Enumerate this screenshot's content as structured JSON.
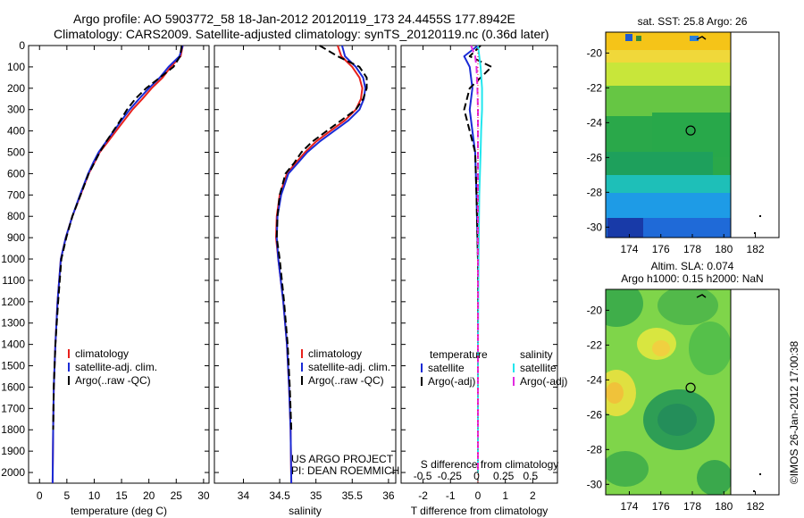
{
  "header": {
    "line1": "Argo profile: AO 5903772_58 18-Jan-2012 20120119_173 24.4455S 177.8942E",
    "line2": "Climatology: CARS2009. Satellite-adjusted climatology: synTS_20120119.nc (0.36d later)"
  },
  "colors": {
    "climatology": "#e8201c",
    "satellite": "#1a2bd6",
    "argo": "#000000",
    "cyan": "#22e6ee",
    "magenta": "#e22be0"
  },
  "chart_data": [
    {
      "id": "temperature",
      "type": "line",
      "xlabel": "temperature (deg C)",
      "xlim": [
        -2,
        31
      ],
      "ylim": [
        0,
        2050
      ],
      "xticks": [
        0,
        5,
        10,
        15,
        20,
        25,
        30
      ],
      "xtick_labels": [
        "0",
        "5",
        "10",
        "15",
        "20",
        "25",
        "30"
      ],
      "yticks": [
        0,
        100,
        200,
        300,
        400,
        500,
        600,
        700,
        800,
        900,
        1000,
        1100,
        1200,
        1300,
        1400,
        1500,
        1600,
        1700,
        1800,
        1900,
        2000
      ],
      "ytick_labels": [
        "0",
        "100",
        "200",
        "300",
        "400",
        "500",
        "600",
        "700",
        "800",
        "900",
        "1000",
        "1100",
        "1200",
        "1300",
        "1400",
        "1500",
        "1600",
        "1700",
        "1800",
        "1900",
        "2000"
      ],
      "legend": [
        "climatology",
        "satellite-adj. clim.",
        "Argo(..raw -QC)"
      ],
      "series": [
        {
          "name": "climatology",
          "color_key": "climatology",
          "dash": "",
          "x": [
            26.2,
            25.8,
            24.0,
            22.5,
            20.5,
            18.8,
            17.0,
            15.5,
            14.0,
            12.5,
            11.0,
            10.0,
            9.0,
            7.5,
            6.0,
            4.8,
            3.9,
            3.3,
            2.9,
            2.6,
            2.5,
            2.4
          ],
          "y": [
            0,
            50,
            100,
            150,
            200,
            250,
            300,
            350,
            400,
            450,
            500,
            550,
            600,
            700,
            800,
            900,
            1000,
            1200,
            1400,
            1600,
            1800,
            2050
          ]
        },
        {
          "name": "satellite-adj. clim.",
          "color_key": "satellite",
          "dash": "",
          "x": [
            26.2,
            25.6,
            23.6,
            22.0,
            20.0,
            18.2,
            16.5,
            15.0,
            13.6,
            12.2,
            10.8,
            9.8,
            8.9,
            7.4,
            6.0,
            4.8,
            3.9,
            3.3,
            2.9,
            2.6,
            2.5,
            2.4
          ],
          "y": [
            0,
            50,
            100,
            150,
            200,
            250,
            300,
            350,
            400,
            450,
            500,
            550,
            600,
            700,
            800,
            900,
            1000,
            1200,
            1400,
            1600,
            1800,
            2050
          ]
        },
        {
          "name": "Argo(..raw -QC)",
          "color_key": "argo",
          "dash": "8,4",
          "x": [
            26.0,
            25.7,
            24.5,
            22.0,
            19.5,
            17.5,
            16.0,
            14.8,
            13.5,
            12.2,
            11.0,
            10.0,
            9.0,
            7.5,
            6.0,
            4.9,
            4.0,
            3.4,
            2.9,
            2.6,
            2.5
          ],
          "y": [
            0,
            50,
            100,
            150,
            200,
            250,
            300,
            350,
            400,
            450,
            500,
            550,
            600,
            700,
            800,
            900,
            1000,
            1200,
            1400,
            1600,
            1800
          ]
        }
      ]
    },
    {
      "id": "salinity",
      "type": "line",
      "xlabel": "salinity",
      "xlim": [
        33.6,
        36.1
      ],
      "ylim": [
        0,
        2050
      ],
      "xticks": [
        34,
        34.5,
        35,
        35.5,
        36
      ],
      "xtick_labels": [
        "34",
        "34.5",
        "35",
        "35.5",
        "36"
      ],
      "legend": [
        "climatology",
        "satellite-adj. clim.",
        "Argo(..raw -QC)"
      ],
      "annotation": [
        "US ARGO PROJECT",
        "PI: DEAN ROEMMICH"
      ],
      "series": [
        {
          "name": "climatology",
          "color_key": "climatology",
          "dash": "",
          "x": [
            35.3,
            35.35,
            35.5,
            35.6,
            35.64,
            35.62,
            35.55,
            35.4,
            35.2,
            35.0,
            34.85,
            34.72,
            34.6,
            34.5,
            34.46,
            34.45,
            34.48,
            34.55,
            34.6,
            34.63,
            34.65,
            34.66
          ],
          "y": [
            0,
            50,
            100,
            150,
            200,
            250,
            300,
            350,
            400,
            450,
            500,
            550,
            600,
            700,
            800,
            900,
            1000,
            1200,
            1400,
            1600,
            1800,
            2050
          ]
        },
        {
          "name": "satellite-adj. clim.",
          "color_key": "satellite",
          "dash": "",
          "x": [
            35.36,
            35.4,
            35.55,
            35.65,
            35.68,
            35.66,
            35.6,
            35.45,
            35.25,
            35.05,
            34.88,
            34.75,
            34.62,
            34.52,
            34.47,
            34.46,
            34.48,
            34.55,
            34.6,
            34.63,
            34.65,
            34.66
          ],
          "y": [
            0,
            50,
            100,
            150,
            200,
            250,
            300,
            350,
            400,
            450,
            500,
            550,
            600,
            700,
            800,
            900,
            1000,
            1200,
            1400,
            1600,
            1800,
            2050
          ]
        },
        {
          "name": "Argo(..raw -QC)",
          "color_key": "argo",
          "dash": "8,4",
          "x": [
            35.05,
            35.3,
            35.6,
            35.7,
            35.7,
            35.65,
            35.55,
            35.35,
            35.15,
            34.95,
            34.8,
            34.7,
            34.58,
            34.5,
            34.47,
            34.46,
            34.5,
            34.56,
            34.61,
            34.64,
            34.66
          ],
          "y": [
            0,
            50,
            100,
            150,
            200,
            250,
            300,
            350,
            400,
            450,
            500,
            550,
            600,
            700,
            800,
            900,
            1000,
            1200,
            1400,
            1600,
            1800
          ]
        }
      ]
    },
    {
      "id": "difference",
      "type": "line",
      "xlabel": "T difference from climatology",
      "xlabel2": "S difference from climatology",
      "xlim": [
        -2.8,
        2.9
      ],
      "ylim": [
        0,
        2050
      ],
      "xticks": [
        -2,
        -1,
        0,
        1,
        2
      ],
      "xtick_labels": [
        "-2",
        "-1",
        "0",
        "1",
        "2"
      ],
      "xticks2": [
        -0.5,
        -0.25,
        0,
        0.25,
        0.5
      ],
      "xtick2_labels": [
        "-0.5",
        "-0.25",
        "0",
        "0.25",
        "0.5"
      ],
      "legend_left_title": "temperature",
      "legend_right_title": "salinity",
      "legend": [
        "satellite",
        "Argo(-adj)",
        "satellite",
        "Argo(-adj)"
      ],
      "series": [
        {
          "name": "T satellite",
          "color_key": "satellite",
          "dash": "",
          "x": [
            0.0,
            -0.5,
            -0.3,
            -0.2,
            -0.3,
            -0.2,
            -0.1,
            -0.05,
            0.0,
            0.0,
            0.0,
            0.0
          ],
          "y": [
            0,
            50,
            100,
            200,
            300,
            400,
            500,
            700,
            1000,
            1400,
            1800,
            2000
          ]
        },
        {
          "name": "T Argo(-adj)",
          "color_key": "argo",
          "dash": "8,4",
          "x": [
            0.1,
            -0.3,
            0.5,
            -0.3,
            -0.5,
            -0.3,
            -0.1,
            -0.05,
            0.0,
            0.0,
            0.0
          ],
          "y": [
            0,
            50,
            100,
            200,
            300,
            400,
            500,
            700,
            1000,
            1400,
            1800
          ]
        },
        {
          "name": "S satellite",
          "color_key": "cyan",
          "dash": "",
          "x": [
            0.0,
            0.05,
            0.1,
            0.15,
            0.15,
            0.12,
            0.1,
            0.05,
            0.02,
            0.0,
            0.0,
            0.0
          ],
          "y": [
            0,
            50,
            100,
            200,
            300,
            400,
            500,
            700,
            1000,
            1400,
            1800,
            2000
          ]
        },
        {
          "name": "S Argo(-adj)",
          "color_key": "magenta",
          "dash": "8,4",
          "x": [
            -0.25,
            -0.1,
            -0.05,
            -0.02,
            0.0,
            0.0,
            0.0,
            0.0,
            0.0,
            0.0
          ],
          "y": [
            0,
            50,
            100,
            200,
            300,
            500,
            800,
            1200,
            1600,
            2000
          ]
        }
      ]
    },
    {
      "id": "sst-map",
      "type": "heatmap",
      "title": "sat. SST: 25.8 Argo: 26",
      "xticks": [
        174,
        176,
        178,
        180,
        182
      ],
      "xtick_labels": [
        "174",
        "176",
        "178",
        "180",
        "182"
      ],
      "yticks": [
        -20,
        -22,
        -24,
        -26,
        -28,
        -30
      ],
      "ytick_labels": [
        "-20",
        "-22",
        "-24",
        "-26",
        "-28",
        "-30"
      ],
      "xlim": [
        172.5,
        183.5
      ],
      "ylim": [
        -30.6,
        -18.8
      ],
      "argo_position": [
        177.89,
        -24.45
      ]
    },
    {
      "id": "sla-map",
      "type": "heatmap",
      "title": "Altim. SLA: 0.074",
      "subtitle": "Argo h1000: 0.15 h2000: NaN",
      "xticks": [
        174,
        176,
        178,
        180,
        182
      ],
      "xtick_labels": [
        "174",
        "176",
        "178",
        "180",
        "182"
      ],
      "yticks": [
        -20,
        -22,
        -24,
        -26,
        -28,
        -30
      ],
      "ytick_labels": [
        "-20",
        "-22",
        "-24",
        "-26",
        "-28",
        "-30"
      ],
      "xlim": [
        172.5,
        183.5
      ],
      "ylim": [
        -30.6,
        -18.8
      ],
      "argo_position": [
        177.89,
        -24.45
      ]
    }
  ],
  "footer": {
    "credit": "©IMOS 26-Jan-2012 17:00:38"
  }
}
